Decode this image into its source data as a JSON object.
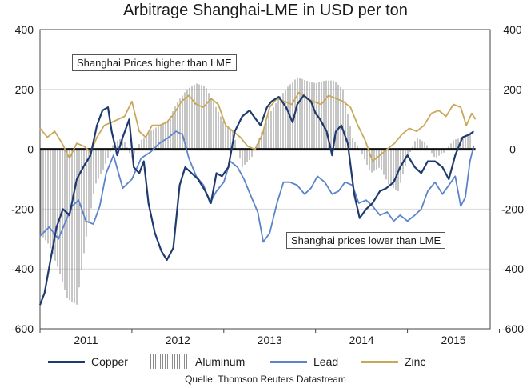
{
  "chart_data": {
    "type": "line",
    "title": "Arbitrage Shanghai-LME in USD per ton",
    "xlabel": "",
    "ylabel": "",
    "ylim": [
      -600,
      400
    ],
    "x_range": [
      2010.5,
      2015.4
    ],
    "y_ticks": [
      400,
      200,
      0,
      -200,
      -400,
      -600
    ],
    "x_tick_labels": [
      {
        "label": "2011",
        "x": 2011.0
      },
      {
        "label": "2012",
        "x": 2012.0
      },
      {
        "label": "2013",
        "x": 2013.0
      },
      {
        "label": "2014",
        "x": 2014.0
      },
      {
        "label": "2015",
        "x": 2015.0
      }
    ],
    "annotations": {
      "higher": "Shanghai Prices higher than LME",
      "lower": "Shanghai prices lower than LME"
    },
    "source": "Quelle: Thomson Reuters Datastream",
    "series": [
      {
        "name": "Copper",
        "color": "#1f3a6e",
        "style": "line",
        "x": [
          2010.5,
          2010.55,
          2010.62,
          2010.68,
          2010.75,
          2010.82,
          2010.9,
          2010.97,
          2011.05,
          2011.12,
          2011.18,
          2011.24,
          2011.28,
          2011.34,
          2011.4,
          2011.47,
          2011.52,
          2011.58,
          2011.63,
          2011.68,
          2011.75,
          2011.82,
          2011.88,
          2011.95,
          2012.02,
          2012.08,
          2012.15,
          2012.22,
          2012.3,
          2012.36,
          2012.42,
          2012.48,
          2012.55,
          2012.62,
          2012.7,
          2012.78,
          2012.85,
          2012.9,
          2012.97,
          2013.02,
          2013.1,
          2013.18,
          2013.25,
          2013.3,
          2013.37,
          2013.45,
          2013.5,
          2013.55,
          2013.62,
          2013.68,
          2013.72,
          2013.78,
          2013.85,
          2013.92,
          2013.98,
          2014.05,
          2014.12,
          2014.2,
          2014.27,
          2014.35,
          2014.42,
          2014.5,
          2014.58,
          2014.65,
          2014.72,
          2014.8,
          2014.88,
          2014.95,
          2015.02,
          2015.1,
          2015.18,
          2015.22
        ],
        "values": [
          -520,
          -480,
          -360,
          -260,
          -200,
          -220,
          -100,
          -60,
          -20,
          80,
          130,
          140,
          60,
          -20,
          40,
          100,
          -60,
          -80,
          -40,
          -180,
          -280,
          -340,
          -370,
          -330,
          -120,
          -60,
          -80,
          -100,
          -140,
          -180,
          -80,
          -90,
          -60,
          60,
          110,
          130,
          100,
          80,
          140,
          160,
          175,
          140,
          90,
          150,
          180,
          160,
          120,
          100,
          60,
          -20,
          60,
          80,
          20,
          -150,
          -230,
          -200,
          -180,
          -140,
          -130,
          -110,
          -60,
          -20,
          -60,
          -80,
          -40,
          -40,
          -60,
          -100,
          -20,
          40,
          50,
          60
        ]
      },
      {
        "name": "Aluminum",
        "color": "#8c8c8c",
        "style": "hatch",
        "x": [
          2010.5,
          2010.6,
          2010.7,
          2010.8,
          2010.9,
          2011.0,
          2011.1,
          2011.2,
          2011.3,
          2011.4,
          2011.5,
          2011.6,
          2011.7,
          2011.8,
          2011.9,
          2012.0,
          2012.1,
          2012.2,
          2012.3,
          2012.4,
          2012.5,
          2012.6,
          2012.7,
          2012.8,
          2012.9,
          2013.0,
          2013.1,
          2013.2,
          2013.3,
          2013.4,
          2013.5,
          2013.6,
          2013.7,
          2013.8,
          2013.9,
          2014.0,
          2014.1,
          2014.2,
          2014.3,
          2014.4,
          2014.5,
          2014.6,
          2014.7,
          2014.8,
          2014.9,
          2015.0,
          2015.1,
          2015.2
        ],
        "values": [
          -280,
          -320,
          -400,
          -500,
          -520,
          -300,
          -120,
          -60,
          20,
          40,
          -30,
          30,
          60,
          80,
          100,
          160,
          200,
          220,
          210,
          150,
          90,
          60,
          -60,
          -30,
          50,
          120,
          170,
          210,
          240,
          230,
          220,
          230,
          230,
          200,
          40,
          -10,
          -80,
          -60,
          -120,
          -140,
          -30,
          40,
          20,
          -30,
          -10,
          30,
          40,
          60
        ]
      },
      {
        "name": "Lead",
        "color": "#5b84c9",
        "style": "line",
        "x": [
          2010.5,
          2010.6,
          2010.7,
          2010.78,
          2010.85,
          2010.92,
          2011.0,
          2011.08,
          2011.15,
          2011.22,
          2011.3,
          2011.4,
          2011.5,
          2011.6,
          2011.7,
          2011.8,
          2011.9,
          2011.98,
          2012.05,
          2012.12,
          2012.2,
          2012.28,
          2012.35,
          2012.42,
          2012.5,
          2012.57,
          2012.65,
          2012.72,
          2012.8,
          2012.87,
          2012.93,
          2013.0,
          2013.08,
          2013.15,
          2013.22,
          2013.3,
          2013.38,
          2013.45,
          2013.52,
          2013.6,
          2013.68,
          2013.75,
          2013.82,
          2013.9,
          2013.97,
          2014.05,
          2014.12,
          2014.2,
          2014.28,
          2014.35,
          2014.42,
          2014.5,
          2014.58,
          2014.65,
          2014.72,
          2014.8,
          2014.88,
          2014.95,
          2015.02,
          2015.08,
          2015.13,
          2015.18,
          2015.22
        ],
        "values": [
          -290,
          -260,
          -300,
          -240,
          -190,
          -170,
          -240,
          -250,
          -190,
          -80,
          -20,
          -130,
          -100,
          -30,
          -10,
          20,
          40,
          60,
          50,
          -30,
          -90,
          -120,
          -180,
          -140,
          -110,
          -40,
          -60,
          -100,
          -160,
          -210,
          -310,
          -280,
          -180,
          -110,
          -110,
          -120,
          -150,
          -130,
          -90,
          -110,
          -150,
          -140,
          -110,
          -120,
          -180,
          -170,
          -190,
          -220,
          -210,
          -240,
          -220,
          -240,
          -220,
          -200,
          -140,
          -110,
          -150,
          -120,
          -90,
          -190,
          -160,
          -40,
          10
        ]
      },
      {
        "name": "Zinc",
        "color": "#c9a85a",
        "style": "line",
        "x": [
          2010.5,
          2010.58,
          2010.66,
          2010.74,
          2010.82,
          2010.9,
          2010.98,
          2011.05,
          2011.12,
          2011.2,
          2011.28,
          2011.35,
          2011.42,
          2011.5,
          2011.58,
          2011.65,
          2011.72,
          2011.8,
          2011.88,
          2011.96,
          2012.04,
          2012.12,
          2012.2,
          2012.28,
          2012.36,
          2012.44,
          2012.52,
          2012.6,
          2012.68,
          2012.76,
          2012.84,
          2012.92,
          2013.0,
          2013.08,
          2013.16,
          2013.24,
          2013.32,
          2013.4,
          2013.48,
          2013.56,
          2013.64,
          2013.72,
          2013.8,
          2013.88,
          2013.96,
          2014.04,
          2014.12,
          2014.2,
          2014.28,
          2014.36,
          2014.44,
          2014.52,
          2014.6,
          2014.68,
          2014.76,
          2014.84,
          2014.92,
          2015.0,
          2015.08,
          2015.14,
          2015.2,
          2015.24
        ],
        "values": [
          70,
          40,
          60,
          20,
          -30,
          20,
          10,
          -10,
          40,
          80,
          90,
          100,
          110,
          160,
          60,
          40,
          80,
          80,
          90,
          120,
          160,
          180,
          150,
          140,
          170,
          150,
          80,
          60,
          40,
          10,
          0,
          50,
          140,
          170,
          160,
          150,
          190,
          170,
          160,
          150,
          180,
          170,
          160,
          140,
          80,
          30,
          -40,
          -20,
          0,
          20,
          50,
          70,
          60,
          80,
          120,
          130,
          110,
          150,
          140,
          80,
          120,
          100
        ]
      }
    ]
  }
}
